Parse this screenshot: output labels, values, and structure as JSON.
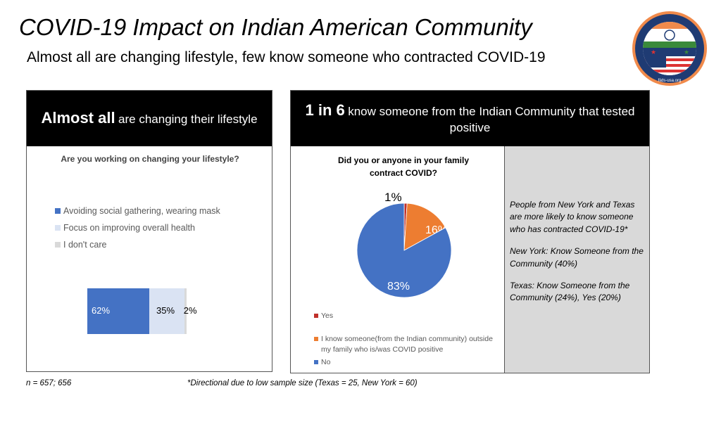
{
  "title": "COVID-19 Impact on Indian American Community",
  "subtitle": "Almost all are changing lifestyle, few know someone who contracted COVID-19",
  "logo": {
    "text": "Foundation for India and Indian Diaspora Studies",
    "url_text": "fiids-usa.org"
  },
  "left_panel": {
    "header_bold": "Almost all",
    "header_rest": "are changing their lifestyle"
  },
  "right_panel": {
    "header_bold": "1 in 6",
    "header_rest": "know someone from the Indian Community that tested positive",
    "note": [
      "People from New York and Texas are more likely to know someone who has contracted COVID-19*",
      "New York: Know Someone from the Community (40%)",
      "Texas: Know Someone from the Community (24%), Yes (20%)"
    ]
  },
  "footer": {
    "left": "n = 657; 656",
    "right": "*Directional due to low sample size (Texas = 25, New York = 60)"
  },
  "chart_data": [
    {
      "type": "bar",
      "stacked": true,
      "orientation": "horizontal",
      "title": "Are you working on changing your lifestyle?",
      "legend_position": "top",
      "series": [
        {
          "name": "Avoiding social gathering, wearing mask",
          "value": 62,
          "label": "62%",
          "color": "#4472C4",
          "label_color": "#ffffff"
        },
        {
          "name": "Focus on improving overall health",
          "value": 35,
          "label": "35%",
          "color": "#DAE3F3",
          "label_color": "#000000"
        },
        {
          "name": "I don't care",
          "value": 2,
          "label": "2%",
          "color": "#D9D9D9",
          "label_color": "#000000"
        }
      ]
    },
    {
      "type": "pie",
      "title": "Did you or anyone in your family contract COVID?",
      "legend_position": "bottom",
      "slices": [
        {
          "name": "Yes",
          "value": 1,
          "label": "1%",
          "color": "#C0302B"
        },
        {
          "name": "I know someone(from the Indian community) outside my family who is/was COVID positive",
          "value": 16,
          "label": "16%",
          "color": "#ED7D31"
        },
        {
          "name": "No",
          "value": 83,
          "label": "83%",
          "color": "#4472C4"
        }
      ]
    }
  ]
}
